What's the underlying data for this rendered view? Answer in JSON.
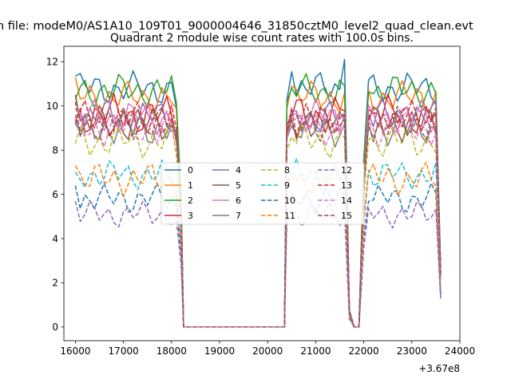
{
  "figure": {
    "suptitle": "n file: modeM0/AS1A10_109T01_9000004646_31850cztM0_level2_quad_clean.evt",
    "title": "Quadrant 2 module wise count rates with 100.0s bins.",
    "x_offset_label": "+3.67e8"
  },
  "chart_data": {
    "type": "line",
    "title": "Quadrant 2 module wise count rates with 100.0s bins.",
    "xlabel": "",
    "ylabel": "",
    "xlim": [
      15760,
      24000
    ],
    "ylim": [
      -0.62,
      12.7
    ],
    "x_offset": 367000000,
    "xticks": [
      16000,
      17000,
      18000,
      19000,
      20000,
      21000,
      22000,
      23000,
      24000
    ],
    "xtick_labels": [
      "16000",
      "17000",
      "18000",
      "19000",
      "20000",
      "21000",
      "22000",
      "23000",
      "24000"
    ],
    "yticks": [
      0,
      2,
      4,
      6,
      8,
      10,
      12
    ],
    "ytick_labels": [
      "0",
      "2",
      "4",
      "6",
      "8",
      "10",
      "12"
    ],
    "legend_position": "center",
    "legend_columns": 4,
    "x": [
      16000,
      16100,
      16200,
      16300,
      16400,
      16500,
      16600,
      16700,
      16800,
      16900,
      17000,
      17100,
      17200,
      17300,
      17400,
      17500,
      17600,
      17700,
      17800,
      17900,
      18000,
      18100,
      18200,
      18250,
      18300,
      18400,
      18500,
      18600,
      18700,
      18800,
      18900,
      19000,
      19100,
      19200,
      19300,
      19400,
      19500,
      19600,
      19700,
      19800,
      19900,
      20000,
      20100,
      20200,
      20300,
      20350,
      20400,
      20500,
      20600,
      20700,
      20800,
      20900,
      21000,
      21100,
      21200,
      21300,
      21400,
      21500,
      21600,
      21700,
      21800,
      21900,
      22000,
      22100,
      22200,
      22300,
      22400,
      22500,
      22600,
      22700,
      22800,
      22900,
      23000,
      23100,
      23200,
      23300,
      23400,
      23500,
      23600
    ],
    "series": [
      {
        "name": "0",
        "color": "#1f77b4",
        "dash": "solid",
        "level": 10.8,
        "amp": 0.5,
        "pre_first": 11.35,
        "post_first": 11.55,
        "spike": 12.1
      },
      {
        "name": "1",
        "color": "#ff7f0e",
        "dash": "solid",
        "level": 10.4,
        "amp": 0.5,
        "pre_first": 11.3,
        "post_first": 10.9
      },
      {
        "name": "2",
        "color": "#2ca02c",
        "dash": "solid",
        "level": 10.7,
        "amp": 0.5,
        "pre_first": 10.3,
        "post_first": 10.8
      },
      {
        "name": "3",
        "color": "#d62728",
        "dash": "solid",
        "level": 9.6,
        "amp": 0.6,
        "pre_first": 9.3,
        "post_first": 9.5
      },
      {
        "name": "4",
        "color": "#9467bd",
        "dash": "solid",
        "level": 9.5,
        "amp": 0.55,
        "pre_first": 9.6,
        "post_first": 9.8
      },
      {
        "name": "5",
        "color": "#8c564b",
        "dash": "solid",
        "level": 9.2,
        "amp": 0.55,
        "pre_first": 10.5,
        "post_first": 9.4
      },
      {
        "name": "6",
        "color": "#e377c2",
        "dash": "solid",
        "level": 9.5,
        "amp": 0.55,
        "pre_first": 9.9,
        "post_first": 9.6
      },
      {
        "name": "7",
        "color": "#7f7f7f",
        "dash": "solid",
        "level": 9.0,
        "amp": 0.55,
        "pre_first": 9.2,
        "post_first": 9.1
      },
      {
        "name": "8",
        "color": "#bcbd22",
        "dash": "dashed",
        "level": 8.4,
        "amp": 0.5,
        "pre_first": 8.3,
        "post_first": 8.6
      },
      {
        "name": "9",
        "color": "#17becf",
        "dash": "dashed",
        "level": 6.9,
        "amp": 0.45,
        "pre_first": 7.0,
        "post_first": 7.0
      },
      {
        "name": "10",
        "color": "#1f77b4",
        "dash": "dashed",
        "level": 5.8,
        "amp": 0.45,
        "pre_first": 6.4,
        "post_first": 6.0
      },
      {
        "name": "11",
        "color": "#ff7f0e",
        "dash": "dashed",
        "level": 6.7,
        "amp": 0.5,
        "pre_first": 7.3,
        "post_first": 6.8
      },
      {
        "name": "12",
        "color": "#9467bd",
        "dash": "dashed",
        "level": 5.1,
        "amp": 0.4,
        "pre_first": 5.7,
        "post_first": 5.3
      },
      {
        "name": "13",
        "color": "#d62728",
        "dash": "dashed",
        "level": 9.4,
        "amp": 0.55,
        "pre_first": 9.2,
        "post_first": 9.9
      },
      {
        "name": "14",
        "color": "#e377c2",
        "dash": "dashed",
        "level": 9.0,
        "amp": 0.55,
        "pre_first": 9.4,
        "post_first": 9.3
      },
      {
        "name": "15",
        "color": "#8c564b",
        "dash": "dashed",
        "level": 9.2,
        "amp": 0.55,
        "pre_first": 10.2,
        "post_first": 9.6
      }
    ]
  }
}
